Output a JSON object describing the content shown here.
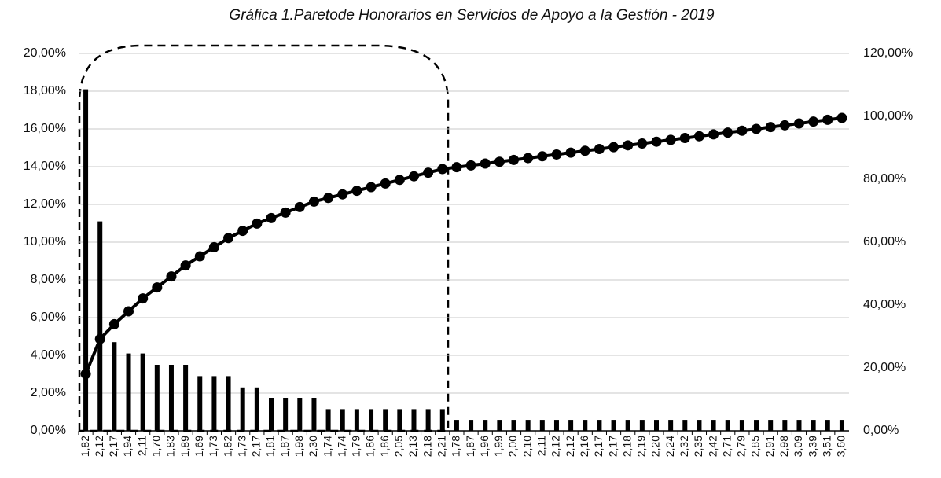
{
  "chart_data": {
    "type": "bar",
    "title": "Gráfica 1.Paretode Honorarios en Servicios de Apoyo a la Gestión - 2019",
    "categories": [
      "1,82",
      "2,12",
      "2,17",
      "1,94",
      "2,11",
      "1,70",
      "1,83",
      "1,89",
      "1,69",
      "1,73",
      "1,82",
      "1,73",
      "2,17",
      "1,81",
      "1,87",
      "1,98",
      "2,30",
      "1,74",
      "1,74",
      "1,79",
      "1,86",
      "1,86",
      "2,05",
      "2,13",
      "2,18",
      "2,21",
      "1,78",
      "1,87",
      "1,96",
      "1,99",
      "2,00",
      "2,10",
      "2,11",
      "2,12",
      "2,12",
      "2,16",
      "2,17",
      "2,17",
      "2,18",
      "2,19",
      "2,20",
      "2,24",
      "2,32",
      "2,35",
      "2,42",
      "2,71",
      "2,79",
      "2,85",
      "2,91",
      "2,98",
      "3,09",
      "3,39",
      "3,51",
      "3,60"
    ],
    "series": [
      {
        "color": "#000000",
        "values": [
          18.1,
          11.1,
          4.7,
          4.1,
          4.1,
          3.5,
          3.5,
          3.5,
          2.9,
          2.9,
          2.9,
          2.3,
          2.3,
          1.75,
          1.75,
          1.75,
          1.75,
          1.15,
          1.15,
          1.15,
          1.15,
          1.15,
          1.15,
          1.15,
          1.15,
          1.15,
          0.58,
          0.58,
          0.58,
          0.58,
          0.58,
          0.58,
          0.58,
          0.58,
          0.58,
          0.58,
          0.58,
          0.58,
          0.58,
          0.58,
          0.58,
          0.58,
          0.58,
          0.58,
          0.58,
          0.58,
          0.58,
          0.58,
          0.58,
          0.58,
          0.58,
          0.58,
          0.58,
          0.58
        ]
      },
      {
        "color": "#000000",
        "type": "line",
        "axis": "y2",
        "values": [
          18.1,
          29.2,
          33.9,
          38.0,
          42.1,
          45.6,
          49.1,
          52.6,
          55.5,
          58.4,
          61.3,
          63.6,
          65.9,
          67.65,
          69.4,
          71.15,
          72.9,
          74.05,
          75.2,
          76.35,
          77.5,
          78.65,
          79.8,
          80.95,
          82.1,
          83.25,
          83.83,
          84.41,
          84.99,
          85.57,
          86.15,
          86.73,
          87.31,
          87.89,
          88.47,
          89.05,
          89.63,
          90.21,
          90.79,
          91.37,
          91.95,
          92.53,
          93.11,
          93.69,
          94.27,
          94.85,
          95.43,
          96.01,
          96.59,
          97.17,
          97.75,
          98.33,
          98.91,
          99.49
        ]
      }
    ],
    "ylim": [
      0,
      20
    ],
    "yticks": [
      {
        "value": 0,
        "label": "0,00%"
      },
      {
        "value": 2,
        "label": "2,00%"
      },
      {
        "value": 4,
        "label": "4,00%"
      },
      {
        "value": 6,
        "label": "6,00%"
      },
      {
        "value": 8,
        "label": "8,00%"
      },
      {
        "value": 10,
        "label": "10,00%"
      },
      {
        "value": 12,
        "label": "12,00%"
      },
      {
        "value": 14,
        "label": "14,00%"
      },
      {
        "value": 16,
        "label": "16,00%"
      },
      {
        "value": 18,
        "label": "18,00%"
      },
      {
        "value": 20,
        "label": "20,00%"
      }
    ],
    "y2lim": [
      0,
      120
    ],
    "y2ticks": [
      {
        "value": 0,
        "label": "0,00%"
      },
      {
        "value": 20,
        "label": "20,00%"
      },
      {
        "value": 40,
        "label": "40,00%"
      },
      {
        "value": 60,
        "label": "60,00%"
      },
      {
        "value": 80,
        "label": "80,00%"
      },
      {
        "value": 100,
        "label": "100,00%"
      },
      {
        "value": 120,
        "label": "120,00%"
      }
    ],
    "grid": true
  }
}
